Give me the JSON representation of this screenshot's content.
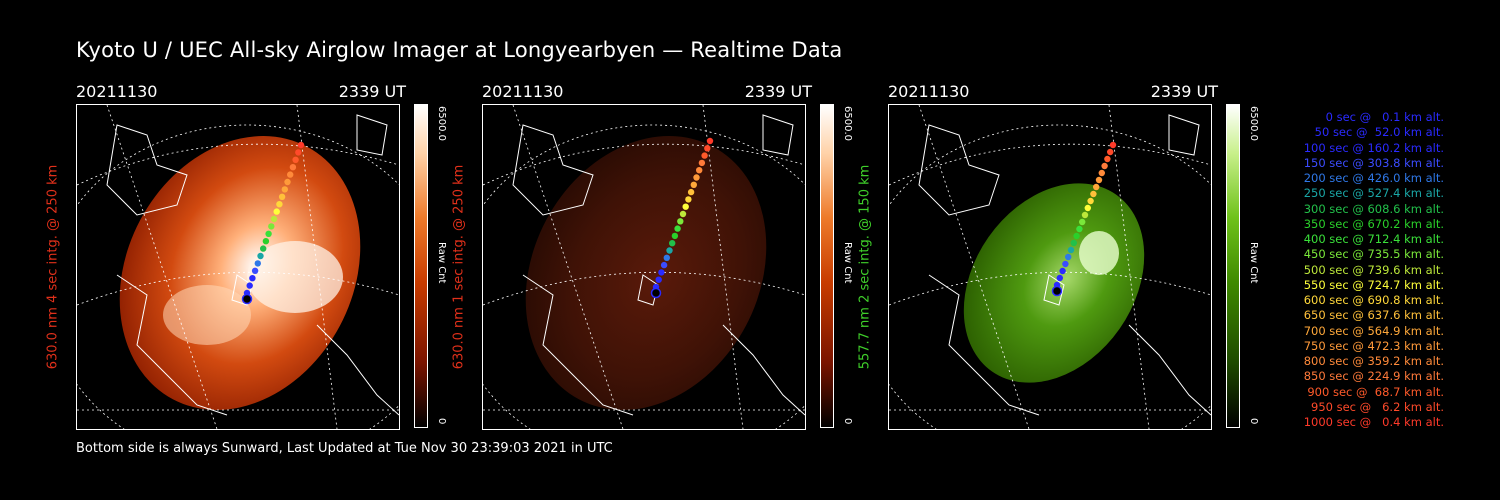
{
  "title": "Kyoto U / UEC All-sky Airglow Imager at Longyearbyen — Realtime Data",
  "footer": "Bottom side is always Sunward, Last Updated at Tue Nov 30 23:39:03 2021 in UTC",
  "panels": [
    {
      "date": "20211130",
      "time": "2339 UT",
      "ylabel": "630.0 nm 4 sec intg. @ 250 km",
      "label_color": "#e0301a",
      "cbar_max": "6500.0",
      "cbar_min": "0",
      "cbar_unit": "Raw Cnt",
      "palette": [
        "#000000",
        "#7a1400",
        "#c83c00",
        "#ee7a2a",
        "#ffd2a8",
        "#ffffff"
      ]
    },
    {
      "date": "20211130",
      "time": "2339 UT",
      "ylabel": "630.0 nm 1 sec intg. @ 250 km",
      "label_color": "#e0301a",
      "cbar_max": "6500.0",
      "cbar_min": "0",
      "cbar_unit": "Raw Cnt",
      "palette": [
        "#000000",
        "#7a1400",
        "#c83c00",
        "#ee7a2a",
        "#ffd2a8",
        "#ffffff"
      ]
    },
    {
      "date": "20211130",
      "time": "2339 UT",
      "ylabel": "557.7 nm 2 sec intg. @ 150 km",
      "label_color": "#3fcf2a",
      "cbar_max": "6500.0",
      "cbar_min": "0",
      "cbar_unit": "Raw Cnt",
      "palette": [
        "#000000",
        "#1e4a00",
        "#3f8a00",
        "#6fc21a",
        "#c8f08a",
        "#ffffff"
      ]
    }
  ],
  "legend": [
    {
      "text": "0 sec @   0.1 km alt.",
      "color": "#2a2aff"
    },
    {
      "text": "50 sec @  52.0 km alt.",
      "color": "#2a2aff"
    },
    {
      "text": "100 sec @ 160.2 km alt.",
      "color": "#2a2aff"
    },
    {
      "text": "150 sec @ 303.8 km alt.",
      "color": "#3b4cff"
    },
    {
      "text": "200 sec @ 426.0 km alt.",
      "color": "#2f78e8"
    },
    {
      "text": "250 sec @ 527.4 km alt.",
      "color": "#1aa6a6"
    },
    {
      "text": "300 sec @ 608.6 km alt.",
      "color": "#22c04a"
    },
    {
      "text": "350 sec @ 670.2 km alt.",
      "color": "#2ad02a"
    },
    {
      "text": "400 sec @ 712.4 km alt.",
      "color": "#3ae03a"
    },
    {
      "text": "450 sec @ 735.5 km alt.",
      "color": "#7ae83a"
    },
    {
      "text": "500 sec @ 739.6 km alt.",
      "color": "#bde83a"
    },
    {
      "text": "550 sec @ 724.7 km alt.",
      "color": "#ffff3a"
    },
    {
      "text": "600 sec @ 690.8 km alt.",
      "color": "#ffd83a"
    },
    {
      "text": "650 sec @ 637.6 km alt.",
      "color": "#ffc03a"
    },
    {
      "text": "700 sec @ 564.9 km alt.",
      "color": "#ffa83a"
    },
    {
      "text": "750 sec @ 472.3 km alt.",
      "color": "#ff9a3a"
    },
    {
      "text": "800 sec @ 359.2 km alt.",
      "color": "#ff8a3a"
    },
    {
      "text": "850 sec @ 224.9 km alt.",
      "color": "#ff7a3a"
    },
    {
      "text": "900 sec @  68.7 km alt.",
      "color": "#ff5a2a"
    },
    {
      "text": "950 sec @   6.2 km alt.",
      "color": "#ff4a2a"
    },
    {
      "text": "1000 sec @   0.4 km alt.",
      "color": "#ff3a2a"
    }
  ]
}
